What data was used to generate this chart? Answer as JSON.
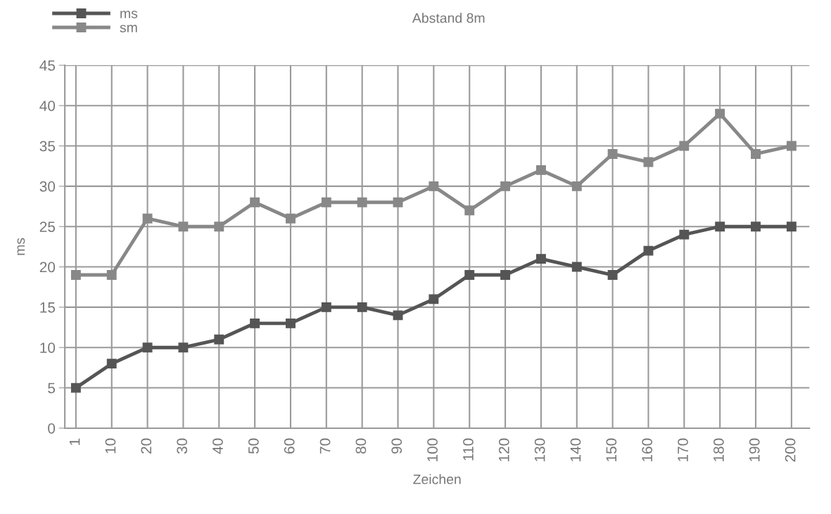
{
  "chart_data": {
    "type": "line",
    "title": "Abstand 8m",
    "xlabel": "Zeichen",
    "ylabel": "ms",
    "categories": [
      "1",
      "10",
      "20",
      "30",
      "40",
      "50",
      "60",
      "70",
      "80",
      "90",
      "100",
      "110",
      "120",
      "130",
      "140",
      "150",
      "160",
      "170",
      "180",
      "190",
      "200"
    ],
    "series": [
      {
        "name": "ms",
        "color": "#555555",
        "values": [
          5,
          8,
          10,
          10,
          11,
          13,
          13,
          15,
          15,
          14,
          16,
          19,
          19,
          21,
          20,
          19,
          22,
          24,
          25,
          25,
          25
        ]
      },
      {
        "name": "sm",
        "color": "#888888",
        "values": [
          19,
          19,
          26,
          25,
          25,
          28,
          26,
          28,
          28,
          28,
          30,
          27,
          30,
          32,
          30,
          34,
          33,
          35,
          39,
          34,
          35
        ]
      }
    ],
    "ylim": [
      0,
      45
    ],
    "yticks": [
      0,
      5,
      10,
      15,
      20,
      25,
      30,
      35,
      40,
      45
    ],
    "grid": true,
    "legend": "top left",
    "marker": "square",
    "line_style": "solid"
  }
}
